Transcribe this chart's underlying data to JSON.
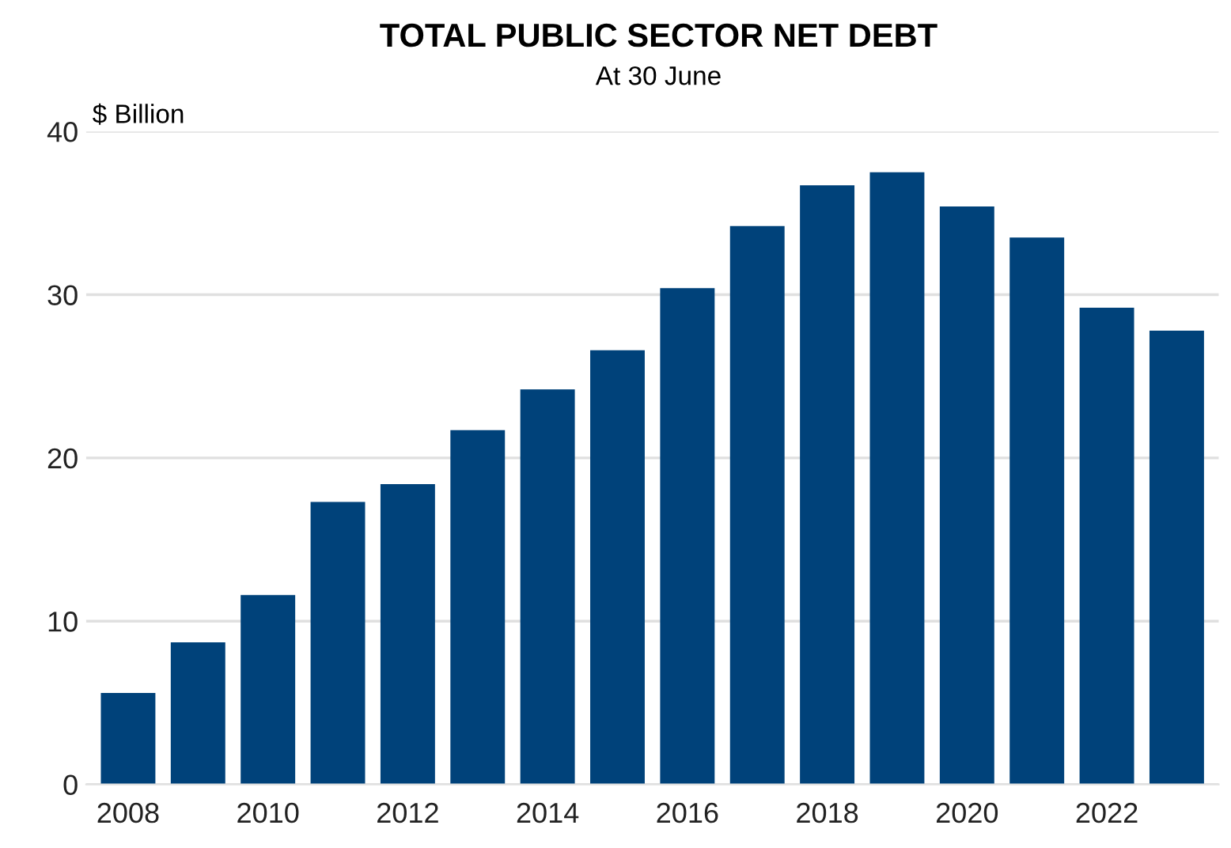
{
  "chart_data": {
    "type": "bar",
    "title": "TOTAL PUBLIC SECTOR NET DEBT",
    "subtitle": "At 30 June",
    "ylabel": "$ Billion",
    "categories": [
      "2008",
      null,
      "2010",
      null,
      "2012",
      null,
      "2014",
      null,
      "2016",
      null,
      "2018",
      null,
      "2020",
      null,
      "2022",
      null
    ],
    "values": [
      5.6,
      8.7,
      11.6,
      17.3,
      18.4,
      21.7,
      24.2,
      26.6,
      30.4,
      34.2,
      36.7,
      37.5,
      35.4,
      33.5,
      29.2,
      27.8
    ],
    "color": "#00427a",
    "ylim": [
      0,
      40
    ],
    "yticks": [
      0,
      10,
      20,
      30,
      40
    ],
    "grid": "y"
  }
}
